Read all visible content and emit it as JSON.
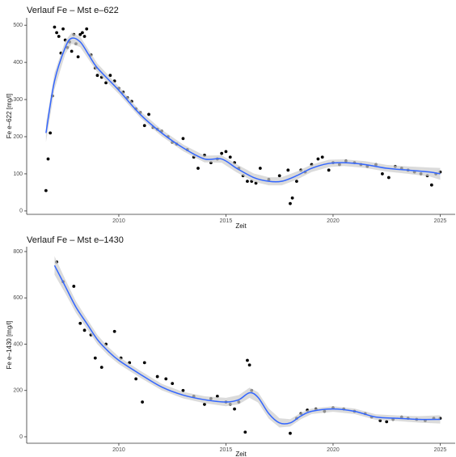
{
  "chart_data": [
    {
      "type": "scatter",
      "title": "Verlauf Fe – Mst e–622",
      "x_label": "Zeit",
      "y_label": "Fe e–622 [mg/l]",
      "xlim": [
        2005.7,
        2025.7
      ],
      "ylim": [
        -9,
        520
      ],
      "xticks": [
        2010,
        2015,
        2020,
        2025
      ],
      "yticks": [
        0,
        100,
        200,
        300,
        400,
        500
      ],
      "point_color": "#000000",
      "line_color": "#3366ff",
      "band_color": "#cccccc",
      "points": {
        "x": [
          2006.6,
          2006.7,
          2006.8,
          2006.9,
          2007.0,
          2007.1,
          2007.2,
          2007.3,
          2007.4,
          2007.5,
          2007.6,
          2007.7,
          2007.8,
          2007.9,
          2008.0,
          2008.1,
          2008.2,
          2008.3,
          2008.4,
          2008.5,
          2008.7,
          2008.9,
          2009.0,
          2009.2,
          2009.4,
          2009.6,
          2009.8,
          2010.0,
          2010.2,
          2010.4,
          2010.6,
          2010.8,
          2011.0,
          2011.2,
          2011.4,
          2011.6,
          2011.8,
          2012.0,
          2012.3,
          2012.5,
          2012.7,
          2013.0,
          2013.2,
          2013.5,
          2013.7,
          2014.0,
          2014.3,
          2014.6,
          2014.8,
          2015.0,
          2015.2,
          2015.4,
          2015.6,
          2015.8,
          2016.0,
          2016.2,
          2016.4,
          2016.6,
          2017.0,
          2017.5,
          2017.9,
          2018.0,
          2018.1,
          2018.3,
          2018.5,
          2018.7,
          2019.0,
          2019.3,
          2019.5,
          2019.8,
          2020.0,
          2020.3,
          2020.6,
          2021.0,
          2021.3,
          2021.6,
          2022.0,
          2022.3,
          2022.6,
          2022.9,
          2023.2,
          2023.5,
          2023.8,
          2024.1,
          2024.4,
          2024.6,
          2024.8,
          2025.0
        ],
        "y": [
          55,
          140,
          210,
          310,
          495,
          480,
          470,
          425,
          490,
          460,
          440,
          455,
          430,
          475,
          450,
          415,
          475,
          480,
          470,
          490,
          420,
          385,
          365,
          360,
          345,
          365,
          350,
          330,
          320,
          305,
          295,
          275,
          265,
          230,
          260,
          225,
          220,
          215,
          200,
          185,
          180,
          195,
          165,
          145,
          115,
          150,
          130,
          140,
          155,
          160,
          145,
          130,
          115,
          95,
          80,
          80,
          75,
          115,
          85,
          95,
          110,
          20,
          35,
          80,
          110,
          105,
          125,
          140,
          145,
          110,
          130,
          125,
          135,
          130,
          125,
          120,
          125,
          100,
          90,
          120,
          115,
          110,
          105,
          100,
          95,
          70,
          100,
          105
        ]
      },
      "smooth": {
        "x": [
          2006.6,
          2007.0,
          2007.5,
          2007.8,
          2008.2,
          2008.6,
          2009,
          2010,
          2011,
          2012,
          2013,
          2014,
          2014.8,
          2015.5,
          2016.3,
          2017,
          2017.6,
          2018.3,
          2019,
          2019.8,
          2020.5,
          2021.5,
          2022.5,
          2023.5,
          2024.5,
          2025
        ],
        "y": [
          210,
          350,
          440,
          465,
          455,
          420,
          385,
          325,
          260,
          210,
          170,
          140,
          140,
          115,
          90,
          80,
          80,
          95,
          115,
          128,
          130,
          125,
          115,
          110,
          105,
          100
        ],
        "lower": [
          185,
          328,
          422,
          450,
          441,
          407,
          373,
          315,
          251,
          201,
          161,
          131,
          130,
          104,
          79,
          69,
          69,
          84,
          105,
          118,
          121,
          116,
          106,
          100,
          93,
          84
        ],
        "upper": [
          235,
          372,
          458,
          480,
          469,
          433,
          397,
          335,
          269,
          219,
          179,
          149,
          150,
          126,
          101,
          91,
          91,
          106,
          125,
          138,
          139,
          134,
          124,
          120,
          117,
          116
        ]
      }
    },
    {
      "type": "scatter",
      "title": "Verlauf Fe – Mst e–1430",
      "x_label": "Zeit",
      "y_label": "Fe e–1430 [mg/l]",
      "xlim": [
        2005.7,
        2025.7
      ],
      "ylim": [
        -28,
        821
      ],
      "xticks": [
        2010,
        2015,
        2020,
        2025
      ],
      "yticks": [
        0,
        200,
        400,
        600,
        800
      ],
      "point_color": "#000000",
      "line_color": "#3366ff",
      "band_color": "#cccccc",
      "points": {
        "x": [
          2007.1,
          2007.4,
          2007.9,
          2008.2,
          2008.4,
          2008.7,
          2008.9,
          2009.2,
          2009.4,
          2009.8,
          2010.1,
          2010.5,
          2010.8,
          2011.1,
          2011.2,
          2011.8,
          2012.2,
          2012.5,
          2013.0,
          2013.5,
          2014.0,
          2014.3,
          2014.6,
          2015.0,
          2015.2,
          2015.4,
          2015.6,
          2015.9,
          2016.0,
          2016.1,
          2016.2,
          2018.0,
          2018.3,
          2018.5,
          2018.8,
          2019.2,
          2019.6,
          2020.0,
          2020.5,
          2021.0,
          2021.5,
          2021.8,
          2022.2,
          2022.5,
          2022.8,
          2023.2,
          2023.5,
          2023.9,
          2024.3,
          2024.7,
          2025.0
        ],
        "y": [
          755,
          670,
          650,
          490,
          460,
          440,
          340,
          300,
          400,
          455,
          340,
          320,
          250,
          150,
          320,
          260,
          250,
          230,
          200,
          175,
          140,
          165,
          175,
          150,
          140,
          120,
          150,
          20,
          330,
          310,
          200,
          15,
          80,
          100,
          115,
          120,
          110,
          125,
          120,
          110,
          100,
          85,
          70,
          65,
          75,
          85,
          80,
          75,
          70,
          80,
          80
        ]
      },
      "smooth": {
        "x": [
          2007,
          2007.5,
          2008,
          2008.5,
          2009,
          2009.5,
          2010,
          2011,
          2012,
          2013,
          2014,
          2015,
          2015.6,
          2016.1,
          2016.5,
          2017,
          2017.5,
          2018,
          2018.5,
          2019,
          2020,
          2021,
          2022,
          2023,
          2024,
          2025
        ],
        "y": [
          740,
          650,
          560,
          490,
          420,
          370,
          330,
          270,
          215,
          180,
          160,
          150,
          160,
          190,
          170,
          100,
          60,
          60,
          90,
          110,
          120,
          110,
          85,
          80,
          75,
          75
        ],
        "lower": [
          700,
          620,
          535,
          468,
          400,
          352,
          314,
          255,
          201,
          166,
          145,
          132,
          140,
          168,
          148,
          78,
          40,
          44,
          76,
          98,
          108,
          98,
          73,
          68,
          61,
          57
        ],
        "upper": [
          780,
          680,
          585,
          512,
          440,
          388,
          346,
          285,
          229,
          194,
          175,
          168,
          180,
          212,
          192,
          122,
          80,
          76,
          104,
          122,
          132,
          122,
          97,
          92,
          89,
          93
        ]
      }
    }
  ]
}
